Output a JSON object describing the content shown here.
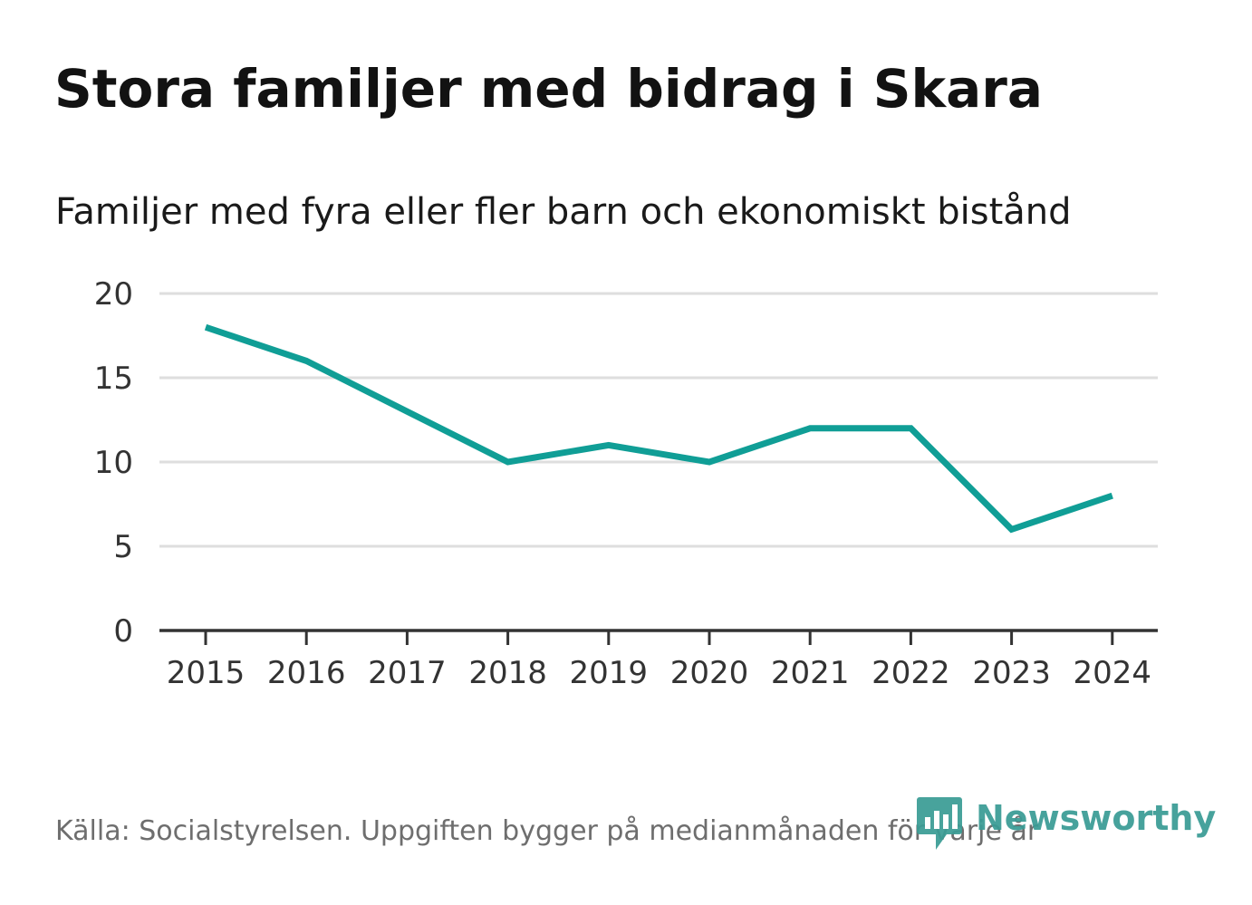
{
  "header": {
    "title": "Stora familjer med bidrag i Skara",
    "subtitle": "Familjer med fyra eller fler barn och ekonomiskt bistånd"
  },
  "footer": {
    "source": "Källa: Socialstyrelsen. Uppgiften bygger på medianmånaden för varje år",
    "brand": "Newsworthy",
    "brand_icon": "newsworthy-logo-icon"
  },
  "colors": {
    "line": "#109e96",
    "grid": "#dedede",
    "axis": "#333333",
    "brand": "#3a9c95"
  },
  "chart_data": {
    "type": "line",
    "title": "Stora familjer med bidrag i Skara",
    "subtitle": "Familjer med fyra eller fler barn och ekonomiskt bistånd",
    "xlabel": "",
    "ylabel": "",
    "categories": [
      "2015",
      "2016",
      "2017",
      "2018",
      "2019",
      "2020",
      "2021",
      "2022",
      "2023",
      "2024"
    ],
    "series": [
      {
        "name": "Familjer med fyra eller fler barn och ekonomiskt bistånd",
        "values": [
          18,
          16,
          13,
          10,
          11,
          10,
          12,
          12,
          6,
          8
        ]
      }
    ],
    "ylim": [
      0,
      20
    ],
    "yticks": [
      "0",
      "5",
      "10",
      "15",
      "20"
    ],
    "grid": true,
    "legend": "none"
  }
}
